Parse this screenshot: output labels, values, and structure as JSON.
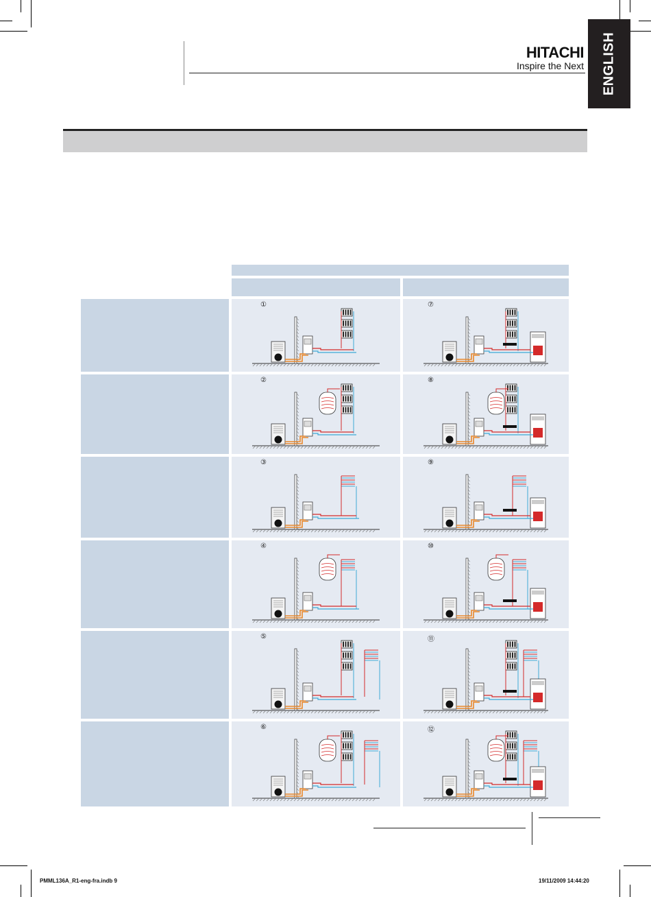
{
  "header": {
    "brand": "HITACHI",
    "tagline": "Inspire the Next",
    "language_tab": "ENGLISH"
  },
  "table": {
    "rows": [
      {
        "left_number": "①",
        "right_number": "⑦"
      },
      {
        "left_number": "②",
        "right_number": "⑧"
      },
      {
        "left_number": "③",
        "right_number": "⑨"
      },
      {
        "left_number": "④",
        "right_number": "⑩"
      },
      {
        "left_number": "⑤",
        "right_number": "⑪"
      },
      {
        "left_number": "⑥",
        "right_number": "⑫"
      }
    ]
  },
  "footer": {
    "file": "PMML136A_R1-eng-fra.indb   9",
    "datetime": "19/11/2009   14:44:20"
  },
  "colors": {
    "header_cell": "#c9d6e4",
    "diagram_cell": "#e5eaf2",
    "section_bar": "#cfcfd0",
    "hot_pipe": "#d42a2a",
    "cold_pipe": "#3fa9d6",
    "refrigerant_pipe": "#e8872b"
  }
}
